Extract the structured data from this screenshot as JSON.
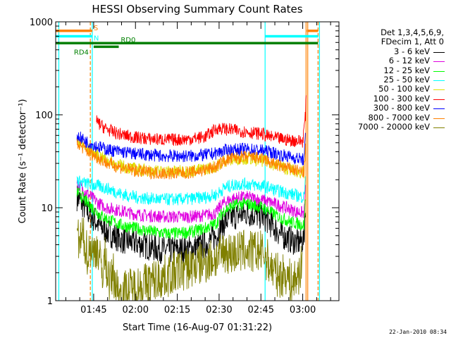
{
  "chart_data": {
    "type": "line",
    "title": "HESSI Observing Summary Count Rates",
    "xlabel": "Start Time (16-Aug-07 01:31:22)",
    "ylabel": "Count Rate (s⁻¹ detector⁻¹)",
    "yscale": "log",
    "ylim": [
      1,
      1000
    ],
    "y_ticks": [
      "1",
      "10",
      "100",
      "1000"
    ],
    "x_ticks": [
      "01:45",
      "02:00",
      "02:15",
      "02:30",
      "02:45",
      "03:00"
    ],
    "x_tick_minutes": [
      105,
      120,
      135,
      150,
      165,
      180
    ],
    "xlim_minutes": [
      91.37,
      193
    ],
    "grid": false,
    "legend_position": "right",
    "legend_header": [
      "Det 1,3,4,5,6,9,",
      "FDecim 1, Att 0"
    ],
    "series": [
      {
        "name": "3 - 6 keV",
        "color": "#000000",
        "t": [
          99,
          100,
          103,
          107,
          110,
          115,
          120,
          125,
          130,
          135,
          140,
          145,
          149,
          150.5,
          152,
          155,
          158,
          160,
          163,
          166,
          168,
          170,
          172,
          174,
          176,
          178,
          180.5,
          181
        ],
        "v": [
          13,
          12,
          9,
          6.5,
          5.5,
          4.5,
          4.2,
          3.8,
          3.5,
          3.5,
          3.6,
          4.0,
          5.0,
          6,
          7,
          8,
          8.5,
          8.7,
          8.5,
          8,
          7,
          6,
          5.2,
          4.8,
          4.5,
          4.2,
          4.5,
          12
        ]
      },
      {
        "name": "6 - 12 keV",
        "color": "#e000e0",
        "t": [
          99,
          100,
          103,
          107,
          110,
          115,
          120,
          125,
          130,
          135,
          140,
          145,
          149,
          150.5,
          152,
          155,
          158,
          160,
          163,
          166,
          168,
          170,
          172,
          174,
          176,
          178,
          180.5,
          181
        ],
        "v": [
          18,
          17,
          14,
          11,
          10,
          9.2,
          8.5,
          8.2,
          8.0,
          8.0,
          8.0,
          8.3,
          8.8,
          10.5,
          11.5,
          12.5,
          13,
          13,
          12.5,
          12,
          11.5,
          11,
          10.5,
          10,
          9.5,
          9,
          8.8,
          16
        ]
      },
      {
        "name": "12 - 25 keV",
        "color": "#00ff00",
        "t": [
          99,
          100,
          103,
          107,
          110,
          115,
          120,
          125,
          130,
          135,
          140,
          145,
          149,
          150.5,
          152,
          155,
          158,
          160,
          163,
          166,
          168,
          170,
          172,
          174,
          176,
          178,
          180.5,
          181
        ],
        "v": [
          15,
          14,
          11,
          8.5,
          7.5,
          6.5,
          6.0,
          5.6,
          5.3,
          5.3,
          5.5,
          6.0,
          6.8,
          8.2,
          9.5,
          10.5,
          11,
          11,
          10.5,
          10,
          9.2,
          8.4,
          7.8,
          7.4,
          7,
          6.8,
          6.5,
          14
        ]
      },
      {
        "name": "25 - 50 keV",
        "color": "#00ffff",
        "t": [
          99,
          100,
          103,
          107,
          110,
          115,
          120,
          125,
          130,
          135,
          140,
          145,
          149,
          150.5,
          152,
          155,
          158,
          160,
          163,
          166,
          168,
          170,
          172,
          174,
          176,
          178,
          180.5,
          181
        ],
        "v": [
          20,
          19,
          18,
          17,
          16,
          14,
          13,
          12.5,
          12.3,
          12.3,
          12.5,
          13,
          13.8,
          15,
          16.5,
          17.5,
          18,
          18,
          17.5,
          17,
          16.5,
          15.5,
          15,
          14.5,
          14,
          13.5,
          13,
          24
        ]
      },
      {
        "name": "50 - 100 keV",
        "color": "#e0e000",
        "t": [
          99,
          100,
          103,
          107,
          110,
          115,
          120,
          125,
          130,
          135,
          140,
          145,
          149,
          150.5,
          152,
          155,
          158,
          160,
          163,
          166,
          168,
          170,
          172,
          174,
          176,
          178,
          180.5,
          181
        ],
        "v": [
          52,
          50,
          42,
          36,
          32,
          28,
          26,
          25,
          24.5,
          24.5,
          25,
          26,
          28,
          30,
          32,
          33,
          34,
          34,
          33,
          32,
          31,
          29,
          28,
          26.5,
          25.5,
          24.5,
          23.5,
          45
        ]
      },
      {
        "name": "100 - 300 keV",
        "color": "#ff0000",
        "t": [
          106,
          107,
          109,
          112,
          116,
          120,
          125,
          130,
          135,
          140,
          145,
          149.5,
          166,
          166.5,
          168,
          172,
          176,
          180,
          181,
          181.3
        ],
        "v": [
          85,
          80,
          72,
          65,
          60,
          57,
          55,
          54,
          54,
          55,
          58,
          72,
          62,
          60,
          58,
          55,
          53,
          52,
          100,
          170
        ]
      },
      {
        "name": "300 - 800 keV",
        "color": "#0000ff",
        "t": [
          99,
          100,
          103,
          107,
          110,
          115,
          120,
          125,
          130,
          135,
          140,
          145,
          149,
          150.5,
          152,
          155,
          158,
          160,
          163,
          166,
          168,
          170,
          172,
          174,
          176,
          178,
          180.5,
          181
        ],
        "v": [
          60,
          57,
          50,
          45,
          42,
          40,
          38,
          37,
          36,
          36,
          36,
          37,
          38.5,
          40,
          41,
          42,
          42.5,
          42.5,
          42,
          41,
          40,
          38.5,
          37,
          36,
          35,
          34,
          33,
          60
        ]
      },
      {
        "name": "800 - 7000 keV",
        "color": "#ff8000",
        "t": [
          99,
          100,
          103,
          107,
          110,
          115,
          120,
          125,
          130,
          135,
          140,
          145,
          149,
          150.5,
          152,
          155,
          158,
          160,
          163,
          166,
          168,
          170,
          172,
          174,
          176,
          178,
          180.5,
          181
        ],
        "v": [
          50,
          47,
          40,
          34,
          30,
          27,
          25,
          24,
          23.5,
          23.5,
          24,
          25.5,
          27.5,
          30,
          32,
          34,
          35,
          35,
          34.5,
          33,
          31,
          29.5,
          28,
          27,
          26,
          25,
          24,
          45
        ]
      },
      {
        "name": "7000 - 20000 keV",
        "color": "#808000",
        "t": [
          99,
          100,
          101,
          102,
          103,
          104,
          105,
          106,
          107,
          108,
          109,
          110,
          111,
          112,
          113,
          114,
          150.5,
          152,
          154,
          156,
          158,
          160,
          162,
          164,
          166,
          168,
          170,
          172,
          174,
          176,
          178,
          180
        ],
        "v": [
          5,
          4,
          5,
          4,
          3,
          4,
          3,
          4,
          3,
          2,
          3,
          2,
          1.5,
          2,
          1.5,
          1.2,
          3,
          3.5,
          3.2,
          3.3,
          3.4,
          3.5,
          3.3,
          3.4,
          3.2,
          2.5,
          2.0,
          1.8,
          2.0,
          1.5,
          1.8,
          2.5
        ]
      }
    ],
    "annotations": [
      {
        "label": "S",
        "color": "#ff8000",
        "y": 800,
        "t_start": 91.37,
        "t_end": 104.5
      },
      {
        "label": "S",
        "color": "#ff8000",
        "y": 800,
        "t_start": 181.5,
        "t_end": 185.5
      },
      {
        "label": "N",
        "color": "#00ffff",
        "y": 700,
        "t_start": 91.37,
        "t_end": 104.5
      },
      {
        "label": "N",
        "color": "#00ffff",
        "y": 700,
        "t_start": 166.5,
        "t_end": 185.5
      },
      {
        "label": "RD0",
        "color": "#008000",
        "y": 590,
        "t_start": 91.37,
        "t_end": 185.5
      },
      {
        "label": "RD4",
        "color": "#008000",
        "y": 540,
        "t_start": 105,
        "t_end": 114
      }
    ],
    "vertical_markers": [
      {
        "t": 92.5,
        "color": "#00ffff",
        "style": "solid"
      },
      {
        "t": 103.8,
        "color": "#ff8000",
        "style": "dashed"
      },
      {
        "t": 104.5,
        "color": "#00ffff",
        "style": "solid"
      },
      {
        "t": 166.5,
        "color": "#00ffff",
        "style": "solid"
      },
      {
        "t": 181.2,
        "color": "#ff8000",
        "style": "solid"
      },
      {
        "t": 181.8,
        "color": "#ff8000",
        "style": "solid"
      },
      {
        "t": 185.5,
        "color": "#ff8000",
        "style": "dashed"
      },
      {
        "t": 186.0,
        "color": "#00ffff",
        "style": "solid"
      }
    ]
  },
  "timestamp": "22-Jan-2010 08:34"
}
